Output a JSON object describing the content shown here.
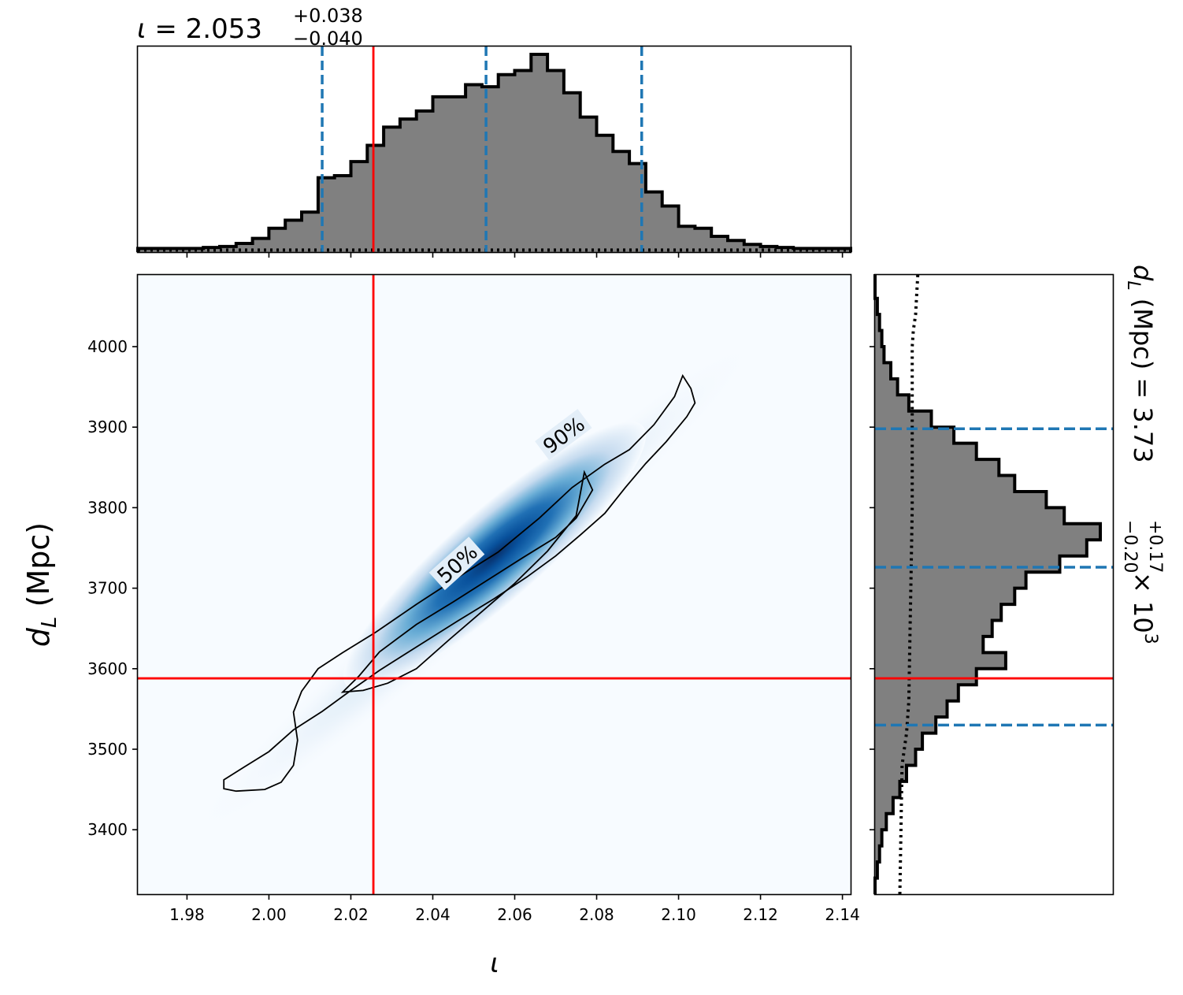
{
  "chart_data": [
    {
      "type": "area",
      "panel": "marginal-x",
      "title_param": "ι",
      "title_median": "2.053",
      "title_plus": "+0.038",
      "title_minus": "−0.040",
      "xlim": [
        1.968,
        2.142
      ],
      "hist_edges": [
        1.968,
        1.972,
        1.976,
        1.98,
        1.984,
        1.988,
        1.992,
        1.996,
        2.0,
        2.004,
        2.008,
        2.012,
        2.016,
        2.02,
        2.024,
        2.028,
        2.032,
        2.036,
        2.04,
        2.044,
        2.048,
        2.052,
        2.056,
        2.06,
        2.064,
        2.068,
        2.072,
        2.076,
        2.08,
        2.084,
        2.088,
        2.092,
        2.096,
        2.1,
        2.104,
        2.108,
        2.112,
        2.116,
        2.12,
        2.124,
        2.128,
        2.132,
        2.136,
        2.142
      ],
      "hist_density": [
        0.01,
        0.01,
        0.01,
        0.01,
        0.015,
        0.02,
        0.035,
        0.06,
        0.11,
        0.15,
        0.19,
        0.36,
        0.37,
        0.44,
        0.52,
        0.61,
        0.65,
        0.69,
        0.76,
        0.76,
        0.82,
        0.81,
        0.87,
        0.89,
        0.97,
        0.89,
        0.78,
        0.66,
        0.57,
        0.49,
        0.43,
        0.29,
        0.22,
        0.12,
        0.11,
        0.07,
        0.05,
        0.03,
        0.02,
        0.015,
        0.01,
        0.01,
        0.01
      ],
      "prior_level": 0.01,
      "quantiles": [
        2.013,
        2.053,
        2.091
      ],
      "injection": 2.0255,
      "colors": {
        "fill": "#808080",
        "edge": "#000000",
        "quantile": "#1f77b4",
        "injection": "#ff0000"
      }
    },
    {
      "type": "heatmap",
      "panel": "joint",
      "xlabel": "ι",
      "ylabel_main": "d",
      "ylabel_sub": "L",
      "ylabel_unit": " (Mpc)",
      "xlim": [
        1.968,
        2.142
      ],
      "ylim": [
        3320,
        4090
      ],
      "xticks": [
        "1.98",
        "2.00",
        "2.02",
        "2.04",
        "2.06",
        "2.08",
        "2.10",
        "2.12",
        "2.14"
      ],
      "yticks": [
        "3400",
        "3500",
        "3600",
        "3700",
        "3800",
        "3900",
        "4000"
      ],
      "density_center": [
        2.058,
        3755
      ],
      "density_slope_mpc_per_unit": 4450,
      "contours": [
        {
          "label": "90%",
          "points": [
            [
              2.101,
              3964
            ],
            [
              2.103,
              3948
            ],
            [
              2.104,
              3930
            ],
            [
              2.102,
              3913
            ],
            [
              2.097,
              3882
            ],
            [
              2.092,
              3855
            ],
            [
              2.087,
              3825
            ],
            [
              2.082,
              3793
            ],
            [
              2.076,
              3766
            ],
            [
              2.07,
              3740
            ],
            [
              2.063,
              3714
            ],
            [
              2.055,
              3687
            ],
            [
              2.046,
              3659
            ],
            [
              2.036,
              3627
            ],
            [
              2.027,
              3598
            ],
            [
              2.02,
              3573
            ],
            [
              2.013,
              3547
            ],
            [
              2.006,
              3524
            ],
            [
              2.0,
              3497
            ],
            [
              1.994,
              3478
            ],
            [
              1.989,
              3462
            ],
            [
              1.989,
              3451
            ],
            [
              1.992,
              3448
            ],
            [
              1.999,
              3450
            ],
            [
              2.003,
              3459
            ],
            [
              2.006,
              3480
            ],
            [
              2.007,
              3511
            ],
            [
              2.006,
              3546
            ],
            [
              2.008,
              3572
            ],
            [
              2.012,
              3600
            ],
            [
              2.018,
              3620
            ],
            [
              2.026,
              3645
            ],
            [
              2.036,
              3680
            ],
            [
              2.046,
              3713
            ],
            [
              2.056,
              3745
            ],
            [
              2.066,
              3787
            ],
            [
              2.074,
              3825
            ],
            [
              2.082,
              3854
            ],
            [
              2.088,
              3872
            ],
            [
              2.094,
              3903
            ],
            [
              2.099,
              3938
            ],
            [
              2.101,
              3964
            ]
          ]
        },
        {
          "label": "50%",
          "points": [
            [
              2.077,
              3844
            ],
            [
              2.079,
              3822
            ],
            [
              2.075,
              3787
            ],
            [
              2.07,
              3763
            ],
            [
              2.062,
              3738
            ],
            [
              2.054,
              3712
            ],
            [
              2.045,
              3683
            ],
            [
              2.036,
              3655
            ],
            [
              2.027,
              3621
            ],
            [
              2.022,
              3591
            ],
            [
              2.018,
              3571
            ],
            [
              2.023,
              3573
            ],
            [
              2.029,
              3582
            ],
            [
              2.036,
              3600
            ],
            [
              2.044,
              3636
            ],
            [
              2.052,
              3671
            ],
            [
              2.06,
              3706
            ],
            [
              2.068,
              3746
            ],
            [
              2.075,
              3790
            ],
            [
              2.077,
              3844
            ]
          ]
        }
      ],
      "contour_labels": [
        {
          "text": "90%",
          "at": [
            2.072,
            3890
          ],
          "angle_deg": -37
        },
        {
          "text": "50%",
          "at": [
            2.046,
            3730
          ],
          "angle_deg": -42
        }
      ],
      "injection": [
        2.0255,
        3588
      ],
      "colors": {
        "cmap_low": "#f7fbff",
        "cmap_high": "#08306b",
        "contour": "#000000",
        "injection": "#ff0000"
      }
    },
    {
      "type": "area",
      "panel": "marginal-y",
      "orientation": "horizontal",
      "title_main": "d",
      "title_sub": "L",
      "title_unit": " (Mpc) = 3.73",
      "title_plus": "+0.17",
      "title_minus": "−0.20",
      "title_scale": " × 10",
      "title_exp": "3",
      "ylim": [
        3320,
        4090
      ],
      "hist_edges": [
        3320,
        3340,
        3360,
        3380,
        3400,
        3420,
        3440,
        3460,
        3480,
        3500,
        3520,
        3540,
        3560,
        3580,
        3600,
        3620,
        3640,
        3660,
        3680,
        3700,
        3720,
        3740,
        3760,
        3780,
        3800,
        3820,
        3840,
        3860,
        3880,
        3900,
        3920,
        3940,
        3960,
        3980,
        4000,
        4020,
        4040,
        4060,
        4090
      ],
      "hist_density": [
        0.0,
        0.01,
        0.02,
        0.03,
        0.05,
        0.08,
        0.11,
        0.14,
        0.18,
        0.21,
        0.27,
        0.32,
        0.37,
        0.45,
        0.58,
        0.48,
        0.52,
        0.56,
        0.62,
        0.67,
        0.82,
        0.94,
        1.0,
        0.84,
        0.76,
        0.62,
        0.55,
        0.45,
        0.35,
        0.25,
        0.15,
        0.1,
        0.07,
        0.04,
        0.03,
        0.02,
        0.01,
        0.0
      ],
      "prior_curve": [
        [
          3320,
          0.11
        ],
        [
          3400,
          0.115
        ],
        [
          3480,
          0.12
        ],
        [
          3520,
          0.14
        ],
        [
          3560,
          0.15
        ],
        [
          3640,
          0.155
        ],
        [
          3720,
          0.16
        ],
        [
          3800,
          0.165
        ],
        [
          3900,
          0.165
        ],
        [
          4000,
          0.165
        ],
        [
          4020,
          0.17
        ],
        [
          4040,
          0.18
        ],
        [
          4090,
          0.19
        ]
      ],
      "quantiles": [
        3530,
        3726,
        3898
      ],
      "injection": 3588,
      "colors": {
        "fill": "#808080",
        "edge": "#000000",
        "quantile": "#1f77b4",
        "injection": "#ff0000"
      }
    }
  ]
}
